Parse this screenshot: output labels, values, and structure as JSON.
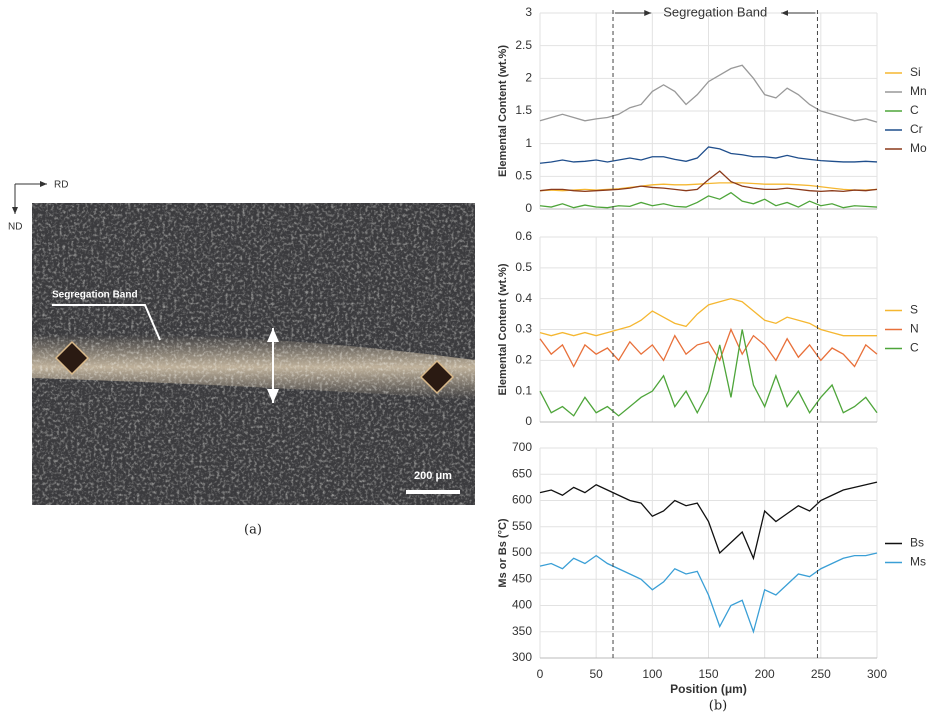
{
  "micrograph": {
    "axes": [
      "RD",
      "ND"
    ],
    "label": "Segregation Band",
    "scale_bar": "200 μm",
    "panel": "(a)"
  },
  "annotation": {
    "text": "Segregation Band",
    "x": [
      65,
      247
    ]
  },
  "panel": "(b)",
  "chart_data": [
    {
      "type": "line",
      "ylabel": "Elemental Content (wt.%)",
      "xlim": [
        0,
        300
      ],
      "xticks": [
        0,
        50,
        100,
        150,
        200,
        250,
        300
      ],
      "ylim": [
        0,
        3
      ],
      "yticks": [
        0,
        0.5,
        1,
        1.5,
        2,
        2.5,
        3
      ],
      "grid": true,
      "legend": "right",
      "x": [
        0,
        10,
        20,
        30,
        40,
        50,
        60,
        70,
        80,
        90,
        100,
        110,
        120,
        130,
        140,
        150,
        160,
        170,
        180,
        190,
        200,
        210,
        220,
        230,
        240,
        250,
        260,
        270,
        280,
        290,
        300
      ],
      "series": [
        {
          "name": "Si",
          "color": "#f5b731",
          "values": [
            0.28,
            0.29,
            0.28,
            0.29,
            0.3,
            0.29,
            0.3,
            0.31,
            0.33,
            0.35,
            0.37,
            0.38,
            0.37,
            0.37,
            0.38,
            0.39,
            0.4,
            0.4,
            0.4,
            0.39,
            0.38,
            0.38,
            0.38,
            0.37,
            0.36,
            0.34,
            0.32,
            0.3,
            0.29,
            0.29,
            0.3
          ]
        },
        {
          "name": "Mn",
          "color": "#999999",
          "values": [
            1.35,
            1.4,
            1.45,
            1.4,
            1.35,
            1.38,
            1.4,
            1.45,
            1.55,
            1.6,
            1.8,
            1.9,
            1.8,
            1.6,
            1.75,
            1.95,
            2.05,
            2.15,
            2.2,
            2.0,
            1.75,
            1.7,
            1.85,
            1.75,
            1.6,
            1.5,
            1.45,
            1.4,
            1.35,
            1.38,
            1.33
          ]
        },
        {
          "name": "C",
          "color": "#4ea53a",
          "values": [
            0.05,
            0.03,
            0.08,
            0.02,
            0.06,
            0.03,
            0.02,
            0.05,
            0.04,
            0.1,
            0.05,
            0.08,
            0.04,
            0.03,
            0.1,
            0.2,
            0.15,
            0.25,
            0.12,
            0.08,
            0.15,
            0.05,
            0.1,
            0.03,
            0.12,
            0.05,
            0.08,
            0.02,
            0.05,
            0.04,
            0.03
          ]
        },
        {
          "name": "Cr",
          "color": "#1f4e8c",
          "values": [
            0.7,
            0.72,
            0.75,
            0.72,
            0.73,
            0.75,
            0.72,
            0.75,
            0.78,
            0.75,
            0.8,
            0.8,
            0.76,
            0.73,
            0.78,
            0.95,
            0.92,
            0.85,
            0.83,
            0.8,
            0.8,
            0.78,
            0.82,
            0.78,
            0.76,
            0.74,
            0.73,
            0.72,
            0.72,
            0.73,
            0.72
          ]
        },
        {
          "name": "Mo",
          "color": "#8b3a1a",
          "values": [
            0.28,
            0.3,
            0.3,
            0.28,
            0.27,
            0.28,
            0.29,
            0.3,
            0.32,
            0.35,
            0.33,
            0.32,
            0.3,
            0.28,
            0.3,
            0.45,
            0.58,
            0.42,
            0.35,
            0.32,
            0.3,
            0.3,
            0.32,
            0.3,
            0.28,
            0.27,
            0.28,
            0.27,
            0.29,
            0.28,
            0.3
          ]
        }
      ]
    },
    {
      "type": "line",
      "ylabel": "Elemental Content (wt.%)",
      "xlim": [
        0,
        300
      ],
      "xticks": [
        0,
        50,
        100,
        150,
        200,
        250,
        300
      ],
      "ylim": [
        0,
        0.6
      ],
      "yticks": [
        0,
        0.1,
        0.2,
        0.3,
        0.4,
        0.5,
        0.6
      ],
      "grid": true,
      "legend": "right",
      "x": [
        0,
        10,
        20,
        30,
        40,
        50,
        60,
        70,
        80,
        90,
        100,
        110,
        120,
        130,
        140,
        150,
        160,
        170,
        180,
        190,
        200,
        210,
        220,
        230,
        240,
        250,
        260,
        270,
        280,
        290,
        300
      ],
      "series": [
        {
          "name": "S",
          "color": "#f5b731",
          "values": [
            0.29,
            0.28,
            0.29,
            0.28,
            0.29,
            0.28,
            0.29,
            0.3,
            0.31,
            0.33,
            0.36,
            0.34,
            0.32,
            0.31,
            0.35,
            0.38,
            0.39,
            0.4,
            0.39,
            0.36,
            0.33,
            0.32,
            0.34,
            0.33,
            0.32,
            0.3,
            0.29,
            0.28,
            0.28,
            0.28,
            0.28
          ]
        },
        {
          "name": "N",
          "color": "#e8703a",
          "values": [
            0.27,
            0.22,
            0.25,
            0.18,
            0.25,
            0.22,
            0.24,
            0.2,
            0.26,
            0.22,
            0.25,
            0.2,
            0.28,
            0.22,
            0.25,
            0.26,
            0.2,
            0.3,
            0.22,
            0.28,
            0.25,
            0.2,
            0.27,
            0.21,
            0.25,
            0.2,
            0.24,
            0.22,
            0.18,
            0.25,
            0.22
          ]
        },
        {
          "name": "C",
          "color": "#4ea53a",
          "values": [
            0.1,
            0.03,
            0.05,
            0.02,
            0.08,
            0.03,
            0.05,
            0.02,
            0.05,
            0.08,
            0.1,
            0.15,
            0.05,
            0.1,
            0.03,
            0.1,
            0.25,
            0.08,
            0.3,
            0.12,
            0.05,
            0.15,
            0.05,
            0.1,
            0.03,
            0.08,
            0.12,
            0.03,
            0.05,
            0.08,
            0.03
          ]
        }
      ]
    },
    {
      "type": "line",
      "ylabel": "Ms or Bs (°C)",
      "xlabel": "Position (μm)",
      "xlim": [
        0,
        300
      ],
      "xticks": [
        0,
        50,
        100,
        150,
        200,
        250,
        300
      ],
      "ylim": [
        300,
        700
      ],
      "yticks": [
        300,
        350,
        400,
        450,
        500,
        550,
        600,
        650,
        700
      ],
      "grid": true,
      "legend": "right",
      "x": [
        0,
        10,
        20,
        30,
        40,
        50,
        60,
        70,
        80,
        90,
        100,
        110,
        120,
        130,
        140,
        150,
        160,
        170,
        180,
        190,
        200,
        210,
        220,
        230,
        240,
        250,
        260,
        270,
        280,
        290,
        300
      ],
      "series": [
        {
          "name": "Bs",
          "color": "#111111",
          "values": [
            615,
            620,
            610,
            625,
            615,
            630,
            620,
            610,
            600,
            595,
            570,
            580,
            600,
            590,
            595,
            560,
            500,
            520,
            540,
            490,
            580,
            560,
            575,
            590,
            580,
            600,
            610,
            620,
            625,
            630,
            635
          ]
        },
        {
          "name": "Ms",
          "color": "#3a9fd6",
          "values": [
            475,
            480,
            470,
            490,
            480,
            495,
            480,
            470,
            460,
            450,
            430,
            445,
            470,
            460,
            465,
            420,
            360,
            400,
            410,
            350,
            430,
            420,
            440,
            460,
            455,
            470,
            480,
            490,
            495,
            495,
            500
          ]
        }
      ]
    }
  ]
}
